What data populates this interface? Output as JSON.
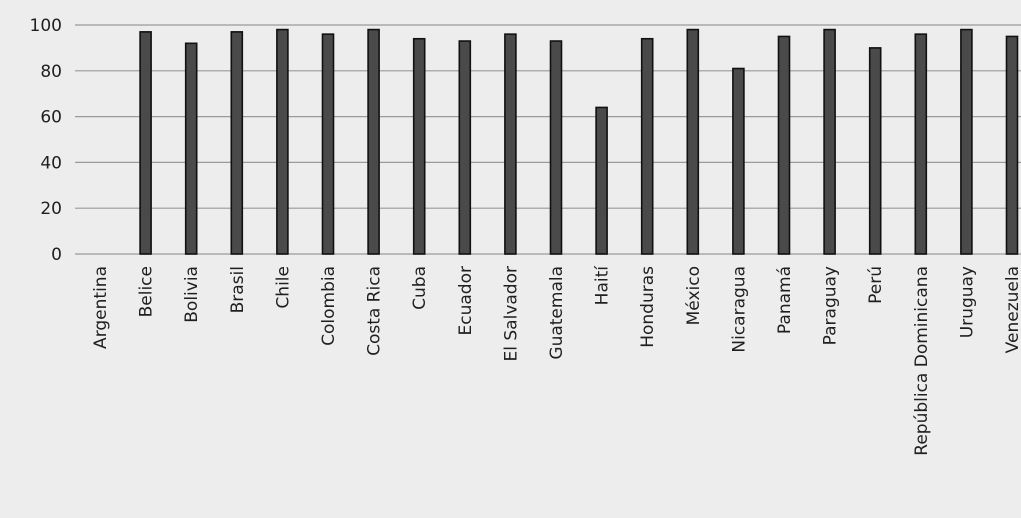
{
  "chart_data": {
    "type": "bar",
    "title": "",
    "xlabel": "",
    "ylabel": "",
    "ylim": [
      0,
      100
    ],
    "yticks": [
      0,
      20,
      40,
      60,
      80,
      100
    ],
    "grid": true,
    "bar_color": "#4a4a4a",
    "categories": [
      "Argentina",
      "Belice",
      "Bolivia",
      "Brasil",
      "Chile",
      "Colombia",
      "Costa Rica",
      "Cuba",
      "Ecuador",
      "El Salvador",
      "Guatemala",
      "Haití",
      "Honduras",
      "México",
      "Nicaragua",
      "Panamá",
      "Paraguay",
      "Perú",
      "República Dominicana",
      "Uruguay",
      "Venezuela"
    ],
    "values": [
      0,
      97,
      92,
      97,
      98,
      96,
      98,
      94,
      93,
      96,
      93,
      64,
      94,
      98,
      81,
      95,
      98,
      90,
      96,
      98,
      95
    ]
  }
}
